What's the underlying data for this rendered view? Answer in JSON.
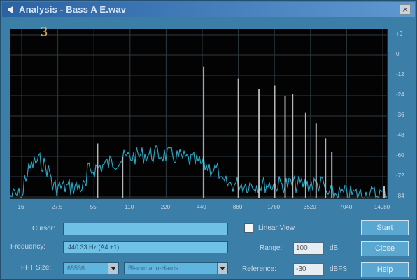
{
  "window": {
    "title": "Analysis - Bass A E.wav",
    "close_glyph": "×"
  },
  "spectrum": {
    "marker": "3",
    "y_ticks": [
      "+9",
      "0",
      "-12",
      "-24",
      "-36",
      "-48",
      "-60",
      "-72",
      "-84"
    ],
    "x_ticks": [
      "16",
      "27.5",
      "55",
      "110",
      "220",
      "440",
      "880",
      "1760",
      "3520",
      "7040",
      "14080"
    ],
    "colors": {
      "background": "#030303",
      "grid": "#2e3a40",
      "trace": "#2ba3bf",
      "peak": "#c9c9c9"
    }
  },
  "controls": {
    "cursor_label": "Cursor:",
    "cursor_value": "",
    "frequency_label": "Frequency:",
    "frequency_value": "440.33 Hz (A4 +1)",
    "fft_label": "FFT Size:",
    "fft_value": "65536",
    "window_value": "Blackmann-Harris",
    "linear_view_label": "Linear View",
    "linear_view_checked": false,
    "range_label": "Range:",
    "range_value": "100",
    "range_unit": "dB",
    "reference_label": "Reference:",
    "reference_value": "-30",
    "reference_unit": "dBFS"
  },
  "buttons": {
    "start": "Start",
    "close": "Close",
    "help": "Help"
  }
}
